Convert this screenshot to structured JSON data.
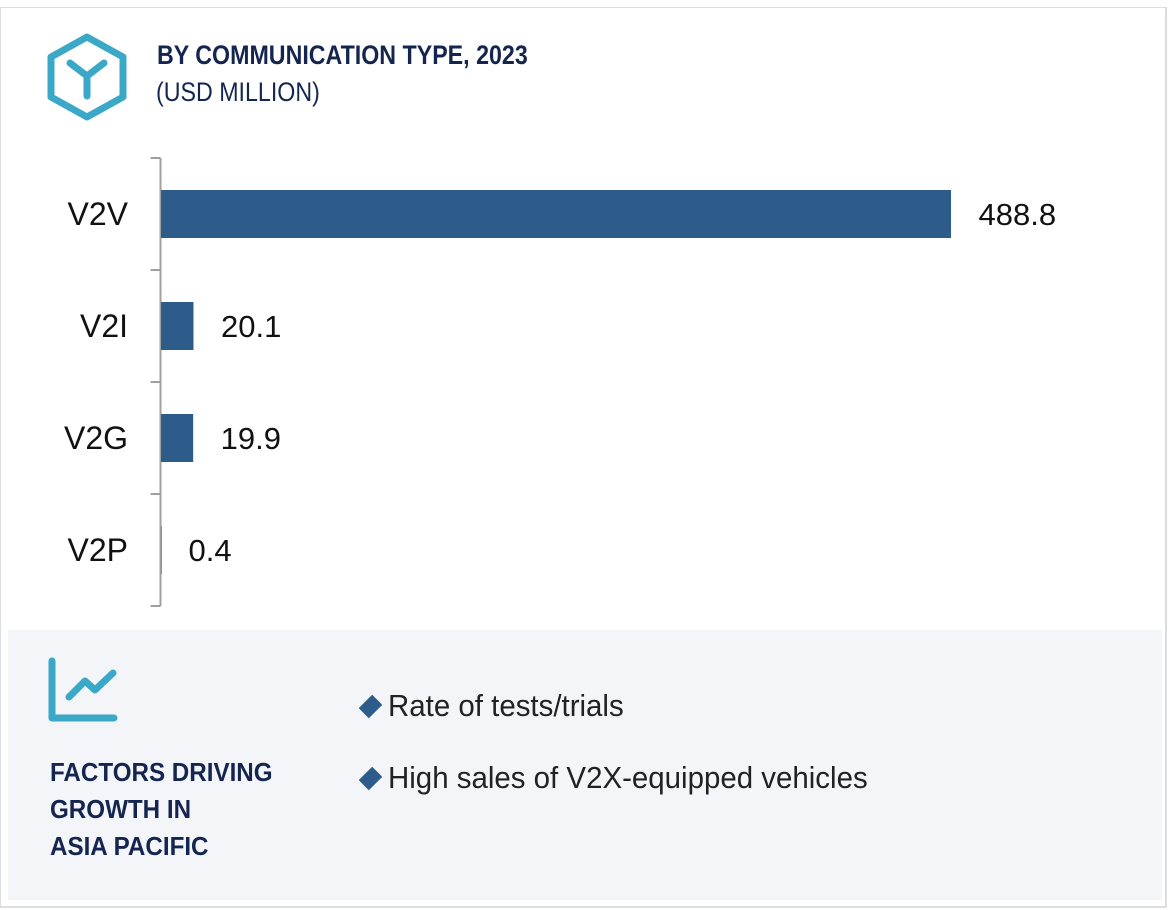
{
  "header": {
    "icon": "hexagon-y-icon",
    "title": "BY COMMUNICATION TYPE, 2023",
    "subtitle": "(USD MILLION)"
  },
  "colors": {
    "bar": "#2d5b8a",
    "heading": "#14264f",
    "accent_icon": "#3aa8c6",
    "panel_bg": "#f3f5f9",
    "axis": "#a0a0a0"
  },
  "chart_data": {
    "type": "bar",
    "orientation": "horizontal",
    "title": "BY COMMUNICATION TYPE, 2023",
    "subtitle": "(USD MILLION)",
    "xlabel": "",
    "ylabel": "",
    "categories": [
      "V2V",
      "V2I",
      "V2G",
      "V2P"
    ],
    "values": [
      488.8,
      20.1,
      19.9,
      0.4
    ],
    "value_labels": [
      "488.8",
      "20.1",
      "19.9",
      "0.4"
    ],
    "xlim": [
      0,
      488.8
    ],
    "grid": false,
    "legend": "none"
  },
  "factors": {
    "icon": "line-chart-icon",
    "title_lines": [
      "FACTORS DRIVING",
      "GROWTH IN",
      "ASIA PACIFIC"
    ],
    "bullet_icon": "diamond-icon",
    "items": [
      "Rate of tests/trials",
      "High sales of V2X-equipped vehicles"
    ]
  }
}
